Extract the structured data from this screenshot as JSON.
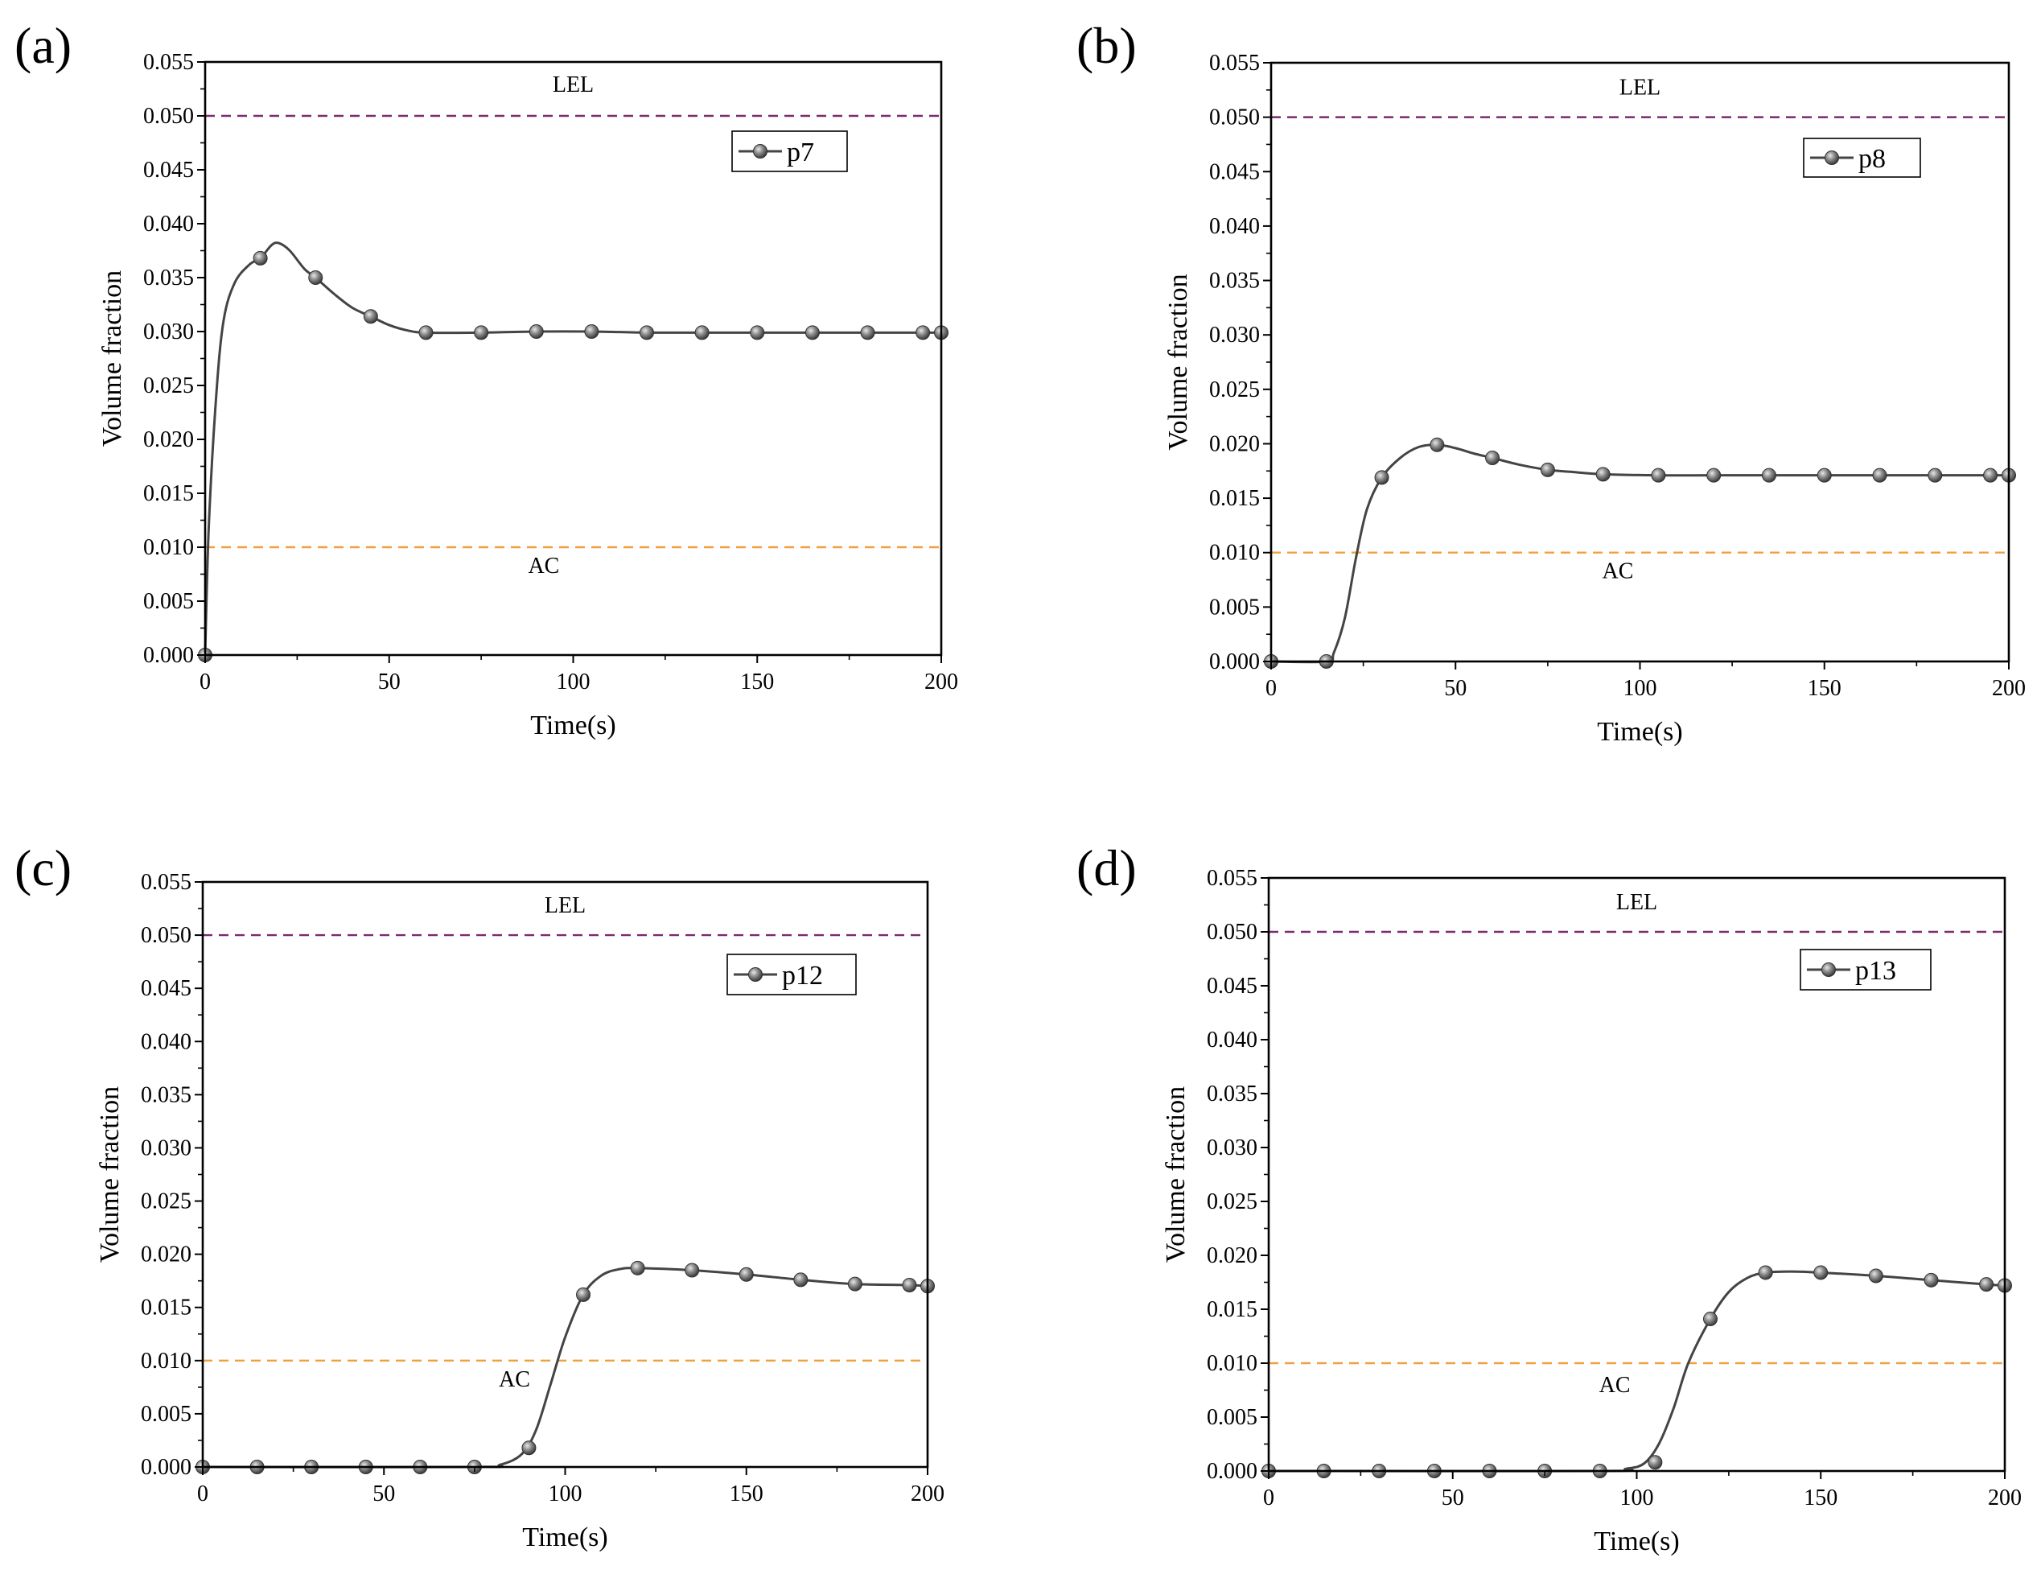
{
  "figure": {
    "x_axis_label": "Time(s)",
    "y_axis_label": "Volume fraction"
  },
  "chart_data": [
    {
      "type": "line",
      "panel": "(a)",
      "xlabel": "Time(s)",
      "ylabel": "Volume fraction",
      "xlim": [
        0,
        200
      ],
      "ylim": [
        0,
        0.055
      ],
      "xticks": [
        "0",
        "50",
        "100",
        "150",
        "200"
      ],
      "yticks": [
        "0.000",
        "0.005",
        "0.010",
        "0.015",
        "0.020",
        "0.025",
        "0.030",
        "0.035",
        "0.040",
        "0.045",
        "0.050",
        "0.055"
      ],
      "legend": "p7",
      "reference_lines": [
        {
          "label": "LEL",
          "y": 0.05,
          "color": "#7b2a6e"
        },
        {
          "label": "AC",
          "y": 0.01,
          "color": "#f0a040"
        }
      ],
      "series": [
        {
          "name": "p7",
          "curve": [
            [
              0,
              0
            ],
            [
              1,
              0.012
            ],
            [
              3,
              0.024
            ],
            [
              5,
              0.031
            ],
            [
              8,
              0.0345
            ],
            [
              12,
              0.0362
            ],
            [
              15,
              0.0368
            ],
            [
              18,
              0.038
            ],
            [
              20,
              0.0382
            ],
            [
              23,
              0.0375
            ],
            [
              27,
              0.0358
            ],
            [
              30,
              0.035
            ],
            [
              35,
              0.0335
            ],
            [
              40,
              0.0322
            ],
            [
              45,
              0.0314
            ],
            [
              50,
              0.0306
            ],
            [
              55,
              0.0301
            ],
            [
              60,
              0.0299
            ],
            [
              75,
              0.0299
            ],
            [
              90,
              0.03
            ],
            [
              105,
              0.03
            ],
            [
              120,
              0.0299
            ],
            [
              135,
              0.0299
            ],
            [
              150,
              0.0299
            ],
            [
              165,
              0.0299
            ],
            [
              180,
              0.0299
            ],
            [
              195,
              0.0299
            ],
            [
              200,
              0.0299
            ]
          ],
          "markers": [
            [
              0,
              0
            ],
            [
              15,
              0.0368
            ],
            [
              30,
              0.035
            ],
            [
              45,
              0.0314
            ],
            [
              60,
              0.0299
            ],
            [
              75,
              0.0299
            ],
            [
              90,
              0.03
            ],
            [
              105,
              0.03
            ],
            [
              120,
              0.0299
            ],
            [
              135,
              0.0299
            ],
            [
              150,
              0.0299
            ],
            [
              165,
              0.0299
            ],
            [
              180,
              0.0299
            ],
            [
              195,
              0.0299
            ],
            [
              200,
              0.0299
            ]
          ]
        }
      ]
    },
    {
      "type": "line",
      "panel": "(b)",
      "xlabel": "Time(s)",
      "ylabel": "Volume fraction",
      "xlim": [
        0,
        200
      ],
      "ylim": [
        0,
        0.055
      ],
      "xticks": [
        "0",
        "50",
        "100",
        "150",
        "200"
      ],
      "yticks": [
        "0.000",
        "0.005",
        "0.010",
        "0.015",
        "0.020",
        "0.025",
        "0.030",
        "0.035",
        "0.040",
        "0.045",
        "0.050",
        "0.055"
      ],
      "legend": "p8",
      "reference_lines": [
        {
          "label": "LEL",
          "y": 0.05,
          "color": "#7b2a6e"
        },
        {
          "label": "AC",
          "y": 0.01,
          "color": "#f0a040"
        }
      ],
      "series": [
        {
          "name": "p8",
          "curve": [
            [
              0,
              0
            ],
            [
              15,
              0
            ],
            [
              17,
              0.0008
            ],
            [
              20,
              0.004
            ],
            [
              23,
              0.0095
            ],
            [
              26,
              0.014
            ],
            [
              30,
              0.0169
            ],
            [
              35,
              0.0187
            ],
            [
              40,
              0.0197
            ],
            [
              45,
              0.0199
            ],
            [
              50,
              0.0196
            ],
            [
              55,
              0.0191
            ],
            [
              60,
              0.0187
            ],
            [
              67,
              0.0181
            ],
            [
              75,
              0.0176
            ],
            [
              82,
              0.0174
            ],
            [
              90,
              0.0172
            ],
            [
              105,
              0.0171
            ],
            [
              120,
              0.0171
            ],
            [
              135,
              0.0171
            ],
            [
              150,
              0.0171
            ],
            [
              165,
              0.0171
            ],
            [
              180,
              0.0171
            ],
            [
              195,
              0.0171
            ],
            [
              200,
              0.0171
            ]
          ],
          "markers": [
            [
              0,
              0
            ],
            [
              15,
              0
            ],
            [
              30,
              0.0169
            ],
            [
              45,
              0.0199
            ],
            [
              60,
              0.0187
            ],
            [
              75,
              0.0176
            ],
            [
              90,
              0.0172
            ],
            [
              105,
              0.0171
            ],
            [
              120,
              0.0171
            ],
            [
              135,
              0.0171
            ],
            [
              150,
              0.0171
            ],
            [
              165,
              0.0171
            ],
            [
              180,
              0.0171
            ],
            [
              195,
              0.0171
            ],
            [
              200,
              0.0171
            ]
          ]
        }
      ]
    },
    {
      "type": "line",
      "panel": "(c)",
      "xlabel": "Time(s)",
      "ylabel": "Volume fraction",
      "xlim": [
        0,
        200
      ],
      "ylim": [
        0,
        0.055
      ],
      "xticks": [
        "0",
        "50",
        "100",
        "150",
        "200"
      ],
      "yticks": [
        "0.000",
        "0.005",
        "0.010",
        "0.015",
        "0.020",
        "0.025",
        "0.030",
        "0.035",
        "0.040",
        "0.045",
        "0.050",
        "0.055"
      ],
      "legend": "p12",
      "reference_lines": [
        {
          "label": "LEL",
          "y": 0.05,
          "color": "#7b2a6e"
        },
        {
          "label": "AC",
          "y": 0.01,
          "color": "#f0a040"
        }
      ],
      "series": [
        {
          "name": "p12",
          "curve": [
            [
              0,
              0
            ],
            [
              75,
              0
            ],
            [
              82,
              0.0002
            ],
            [
              88,
              0.0012
            ],
            [
              92,
              0.0035
            ],
            [
              96,
              0.0078
            ],
            [
              100,
              0.0122
            ],
            [
              105,
              0.0162
            ],
            [
              110,
              0.018
            ],
            [
              115,
              0.0186
            ],
            [
              120,
              0.0187
            ],
            [
              135,
              0.0185
            ],
            [
              150,
              0.0181
            ],
            [
              165,
              0.0176
            ],
            [
              180,
              0.0172
            ],
            [
              195,
              0.0171
            ],
            [
              200,
              0.017
            ]
          ],
          "markers": [
            [
              0,
              0
            ],
            [
              15,
              0
            ],
            [
              30,
              0
            ],
            [
              45,
              0
            ],
            [
              60,
              0
            ],
            [
              75,
              0
            ],
            [
              90,
              0.0018
            ],
            [
              105,
              0.0162
            ],
            [
              120,
              0.0187
            ],
            [
              135,
              0.0185
            ],
            [
              150,
              0.0181
            ],
            [
              165,
              0.0176
            ],
            [
              180,
              0.0172
            ],
            [
              195,
              0.0171
            ],
            [
              200,
              0.017
            ]
          ]
        }
      ]
    },
    {
      "type": "line",
      "panel": "(d)",
      "xlabel": "Time(s)",
      "ylabel": "Volume fraction",
      "xlim": [
        0,
        200
      ],
      "ylim": [
        0,
        0.055
      ],
      "xticks": [
        "0",
        "50",
        "100",
        "150",
        "200"
      ],
      "yticks": [
        "0.000",
        "0.005",
        "0.010",
        "0.015",
        "0.020",
        "0.025",
        "0.030",
        "0.035",
        "0.040",
        "0.045",
        "0.050",
        "0.055"
      ],
      "legend": "p13",
      "reference_lines": [
        {
          "label": "LEL",
          "y": 0.05,
          "color": "#7b2a6e"
        },
        {
          "label": "AC",
          "y": 0.01,
          "color": "#f0a040"
        }
      ],
      "series": [
        {
          "name": "p13",
          "curve": [
            [
              0,
              0
            ],
            [
              90,
              0
            ],
            [
              97,
              0.0002
            ],
            [
              102,
              0.0007
            ],
            [
              106,
              0.0025
            ],
            [
              110,
              0.0058
            ],
            [
              114,
              0.01
            ],
            [
              120,
              0.0141
            ],
            [
              125,
              0.0166
            ],
            [
              130,
              0.0179
            ],
            [
              135,
              0.0184
            ],
            [
              142,
              0.0185
            ],
            [
              150,
              0.0184
            ],
            [
              165,
              0.0181
            ],
            [
              180,
              0.0177
            ],
            [
              195,
              0.0173
            ],
            [
              200,
              0.0172
            ]
          ],
          "markers": [
            [
              0,
              0
            ],
            [
              15,
              0
            ],
            [
              30,
              0
            ],
            [
              45,
              0
            ],
            [
              60,
              0
            ],
            [
              75,
              0
            ],
            [
              90,
              0
            ],
            [
              105,
              0.0008
            ],
            [
              120,
              0.0141
            ],
            [
              135,
              0.0184
            ],
            [
              150,
              0.0184
            ],
            [
              165,
              0.0181
            ],
            [
              180,
              0.0177
            ],
            [
              195,
              0.0173
            ],
            [
              200,
              0.0172
            ]
          ]
        }
      ]
    }
  ]
}
